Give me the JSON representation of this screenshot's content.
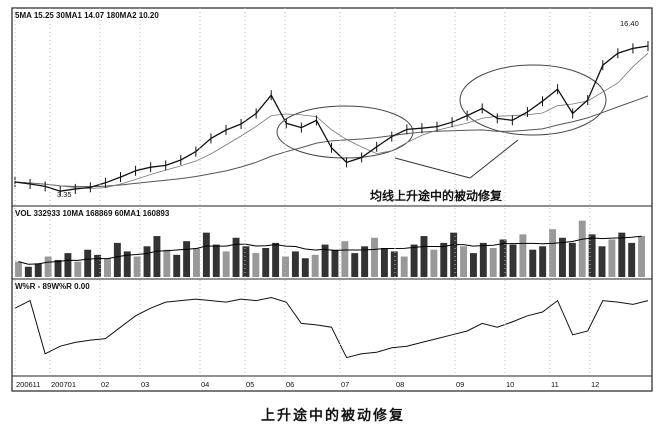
{
  "chart_data": {
    "type": "line",
    "title": "",
    "price_panel": {
      "legend": "5MA 15.25  30MA1 14.07  180MA2 10.20",
      "close": [
        4.17,
        4.0,
        3.8,
        3.4,
        3.59,
        3.72,
        4.1,
        4.57,
        5.1,
        5.4,
        5.55,
        6.0,
        6.7,
        7.8,
        8.5,
        9.0,
        9.88,
        11.4,
        9.06,
        8.7,
        9.3,
        7.02,
        5.8,
        6.21,
        7.1,
        7.95,
        8.55,
        8.65,
        8.78,
        9.15,
        9.7,
        10.29,
        9.47,
        9.31,
        10.0,
        10.9,
        11.9,
        9.88,
        11.0,
        13.9,
        14.9,
        15.3,
        15.5
      ],
      "ylim": [
        2.5,
        17.5
      ],
      "low_label": "3.35",
      "high_label": "16.40",
      "annotation": "均线上升途中的被动修复"
    },
    "volume_panel": {
      "legend": "VOL 332933  10MA 168869  60MA1 160893",
      "values": [
        90,
        60,
        80,
        120,
        100,
        140,
        90,
        160,
        130,
        110,
        200,
        150,
        120,
        180,
        240,
        160,
        130,
        210,
        170,
        260,
        190,
        150,
        230,
        180,
        140,
        170,
        200,
        120,
        150,
        110,
        130,
        190,
        160,
        210,
        140,
        180,
        230,
        170,
        150,
        120,
        190,
        240,
        160,
        200,
        260,
        180,
        140,
        200,
        170,
        220,
        190,
        250,
        160,
        180,
        280,
        230,
        200,
        330,
        250,
        180,
        220,
        260,
        200,
        240
      ],
      "ymax": 340
    },
    "wr_panel": {
      "legend": "W%R - 89W%R 0.00",
      "values": [
        -20,
        -10,
        -80,
        -70,
        -65,
        -62,
        -60,
        -45,
        -30,
        -20,
        -12,
        -10,
        -8,
        -10,
        -12,
        -8,
        -10,
        -6,
        -12,
        -40,
        -42,
        -45,
        -85,
        -80,
        -78,
        -72,
        -70,
        -65,
        -60,
        -55,
        -50,
        -40,
        -45,
        -38,
        -30,
        -25,
        -10,
        -55,
        -50,
        -10,
        -12,
        -15,
        -10
      ],
      "ylim": [
        -100,
        0
      ]
    },
    "x_ticks": [
      "200611",
      "200701",
      "02",
      "03",
      "04",
      "05",
      "06",
      "07",
      "08",
      "09",
      "10",
      "11",
      "12"
    ]
  },
  "caption": "上升途中的被动修复"
}
